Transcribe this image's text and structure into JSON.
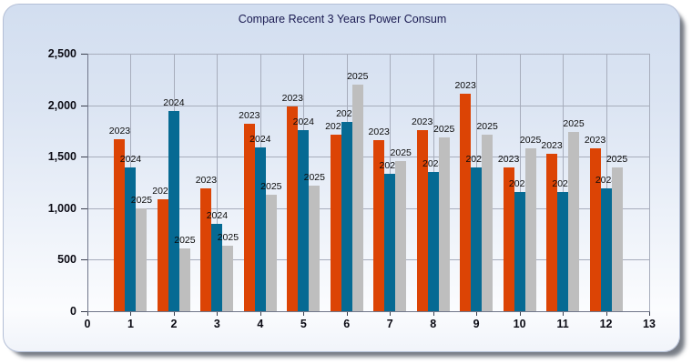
{
  "chart_data": {
    "type": "bar",
    "title": "Compare Recent 3 Years Power Consum",
    "title_color": "#191950",
    "categories": [
      1,
      2,
      3,
      4,
      5,
      6,
      7,
      8,
      9,
      10,
      11,
      12
    ],
    "series": [
      {
        "name": "2023",
        "color": "#DC4405",
        "values": [
          1670,
          1090,
          1190,
          1820,
          1990,
          1710,
          1660,
          1760,
          2110,
          1400,
          1530,
          1580
        ]
      },
      {
        "name": "2024",
        "color": "#066A93",
        "values": [
          1400,
          1940,
          850,
          1590,
          1760,
          1840,
          1330,
          1350,
          1400,
          1160,
          1160,
          1190
        ]
      },
      {
        "name": "2025",
        "color": "#BEBEBE",
        "values": [
          1000,
          610,
          640,
          1130,
          1220,
          2200,
          1460,
          1690,
          1710,
          1580,
          1740,
          1400
        ]
      }
    ],
    "point_labels": "series-name-above-each-bar",
    "xlim": [
      0,
      13
    ],
    "ylim": [
      0,
      2500
    ],
    "x_ticks": [
      0,
      1,
      2,
      3,
      4,
      5,
      6,
      7,
      8,
      9,
      10,
      11,
      12,
      13
    ],
    "x_tick_labels": [
      "0",
      "1",
      "2",
      "3",
      "4",
      "5",
      "6",
      "7",
      "8",
      "9",
      "10",
      "11",
      "12",
      "13"
    ],
    "y_ticks": [
      0,
      500,
      1000,
      1500,
      2000,
      2500
    ],
    "y_tick_labels": [
      "0",
      "500",
      "1,000",
      "1,500",
      "2,000",
      "2,500"
    ],
    "grid": true,
    "legend": "none"
  }
}
